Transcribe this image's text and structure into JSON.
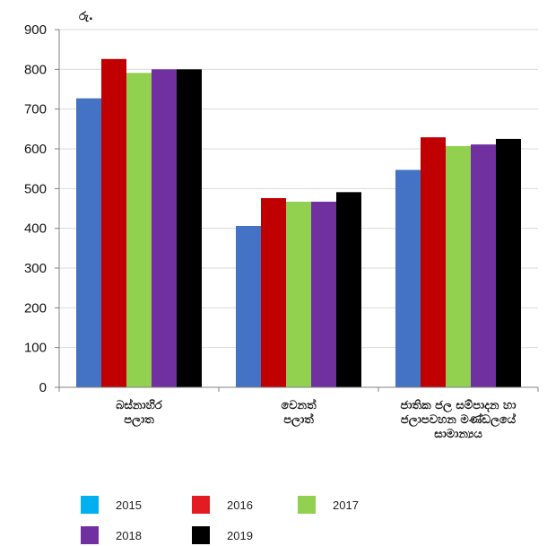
{
  "chart_data": {
    "type": "bar",
    "ylabel": "රු.",
    "ylim": [
      0,
      900
    ],
    "yticks": [
      0,
      100,
      200,
      300,
      400,
      500,
      600,
      700,
      800,
      900
    ],
    "grid": true,
    "legend_position": "bottom",
    "categories": [
      [
        "බස්නාහිර",
        "පලාත"
      ],
      [
        "වෙනත්",
        "පලාත්"
      ],
      [
        "ජාතික ජල සම්පාදන හා",
        "ජලාපවහන මණ්ඩලයේ",
        "සාමාන්‍යය"
      ]
    ],
    "series": [
      {
        "name": "2015",
        "color": "#4472c4",
        "legend_color": "#00b0f0",
        "values": [
          727,
          406,
          547
        ]
      },
      {
        "name": "2016",
        "color": "#c00000",
        "legend_color": "#e31c24",
        "values": [
          826,
          476,
          629
        ]
      },
      {
        "name": "2017",
        "color": "#92d050",
        "legend_color": "#92d050",
        "values": [
          791,
          467,
          607
        ]
      },
      {
        "name": "2018",
        "color": "#7030a0",
        "legend_color": "#7030a0",
        "values": [
          800,
          467,
          611
        ]
      },
      {
        "name": "2019",
        "color": "#000000",
        "legend_color": "#000000",
        "values": [
          800,
          491,
          625
        ]
      }
    ]
  }
}
